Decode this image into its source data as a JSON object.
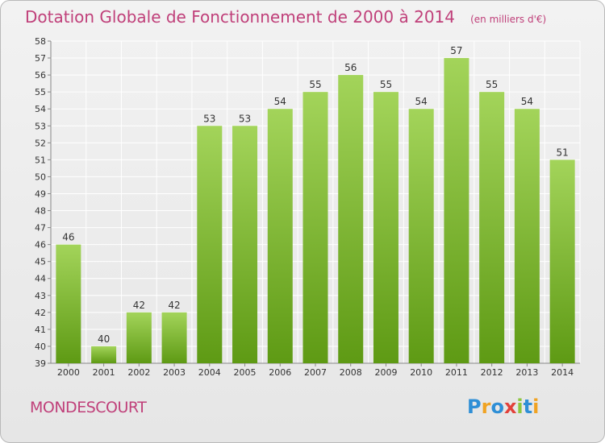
{
  "colors": {
    "title": "#c0407a",
    "bar_top": "#a3d45a",
    "bar_bottom": "#5e9a14",
    "grid": "#ffffff"
  },
  "header": {
    "title": "Dotation Globale de Fonctionnement de 2000 à 2014",
    "unit": "(en milliers d'€)"
  },
  "commune": "MONDESCOURT",
  "logo": {
    "text": "Proxiti",
    "letters": [
      "P",
      "r",
      "o",
      "x",
      "i",
      "t",
      "i"
    ],
    "colors": [
      "#2f8fd6",
      "#f0a323",
      "#2f8fd6",
      "#e2413a",
      "#8dc63f",
      "#2f8fd6",
      "#f0a323"
    ]
  },
  "chart_data": {
    "type": "bar",
    "title": "Dotation Globale de Fonctionnement de 2000 à 2014",
    "subtitle": "(en milliers d'€)",
    "xlabel": "",
    "ylabel": "",
    "categories": [
      "2000",
      "2001",
      "2002",
      "2003",
      "2004",
      "2005",
      "2006",
      "2007",
      "2008",
      "2009",
      "2010",
      "2011",
      "2012",
      "2013",
      "2014"
    ],
    "values": [
      46,
      40,
      42,
      42,
      53,
      53,
      54,
      55,
      56,
      55,
      54,
      57,
      55,
      54,
      51
    ],
    "data_labels": [
      "46",
      "40",
      "42",
      "42",
      "53",
      "53",
      "54",
      "55",
      "56",
      "55",
      "54",
      "57",
      "55",
      "54",
      "51"
    ],
    "ylim": [
      39,
      58
    ],
    "yticks": [
      "39",
      "40",
      "41",
      "42",
      "43",
      "44",
      "45",
      "46",
      "47",
      "48",
      "49",
      "50",
      "51",
      "52",
      "53",
      "54",
      "55",
      "56",
      "57",
      "58"
    ],
    "grid": true,
    "legend": "none"
  }
}
